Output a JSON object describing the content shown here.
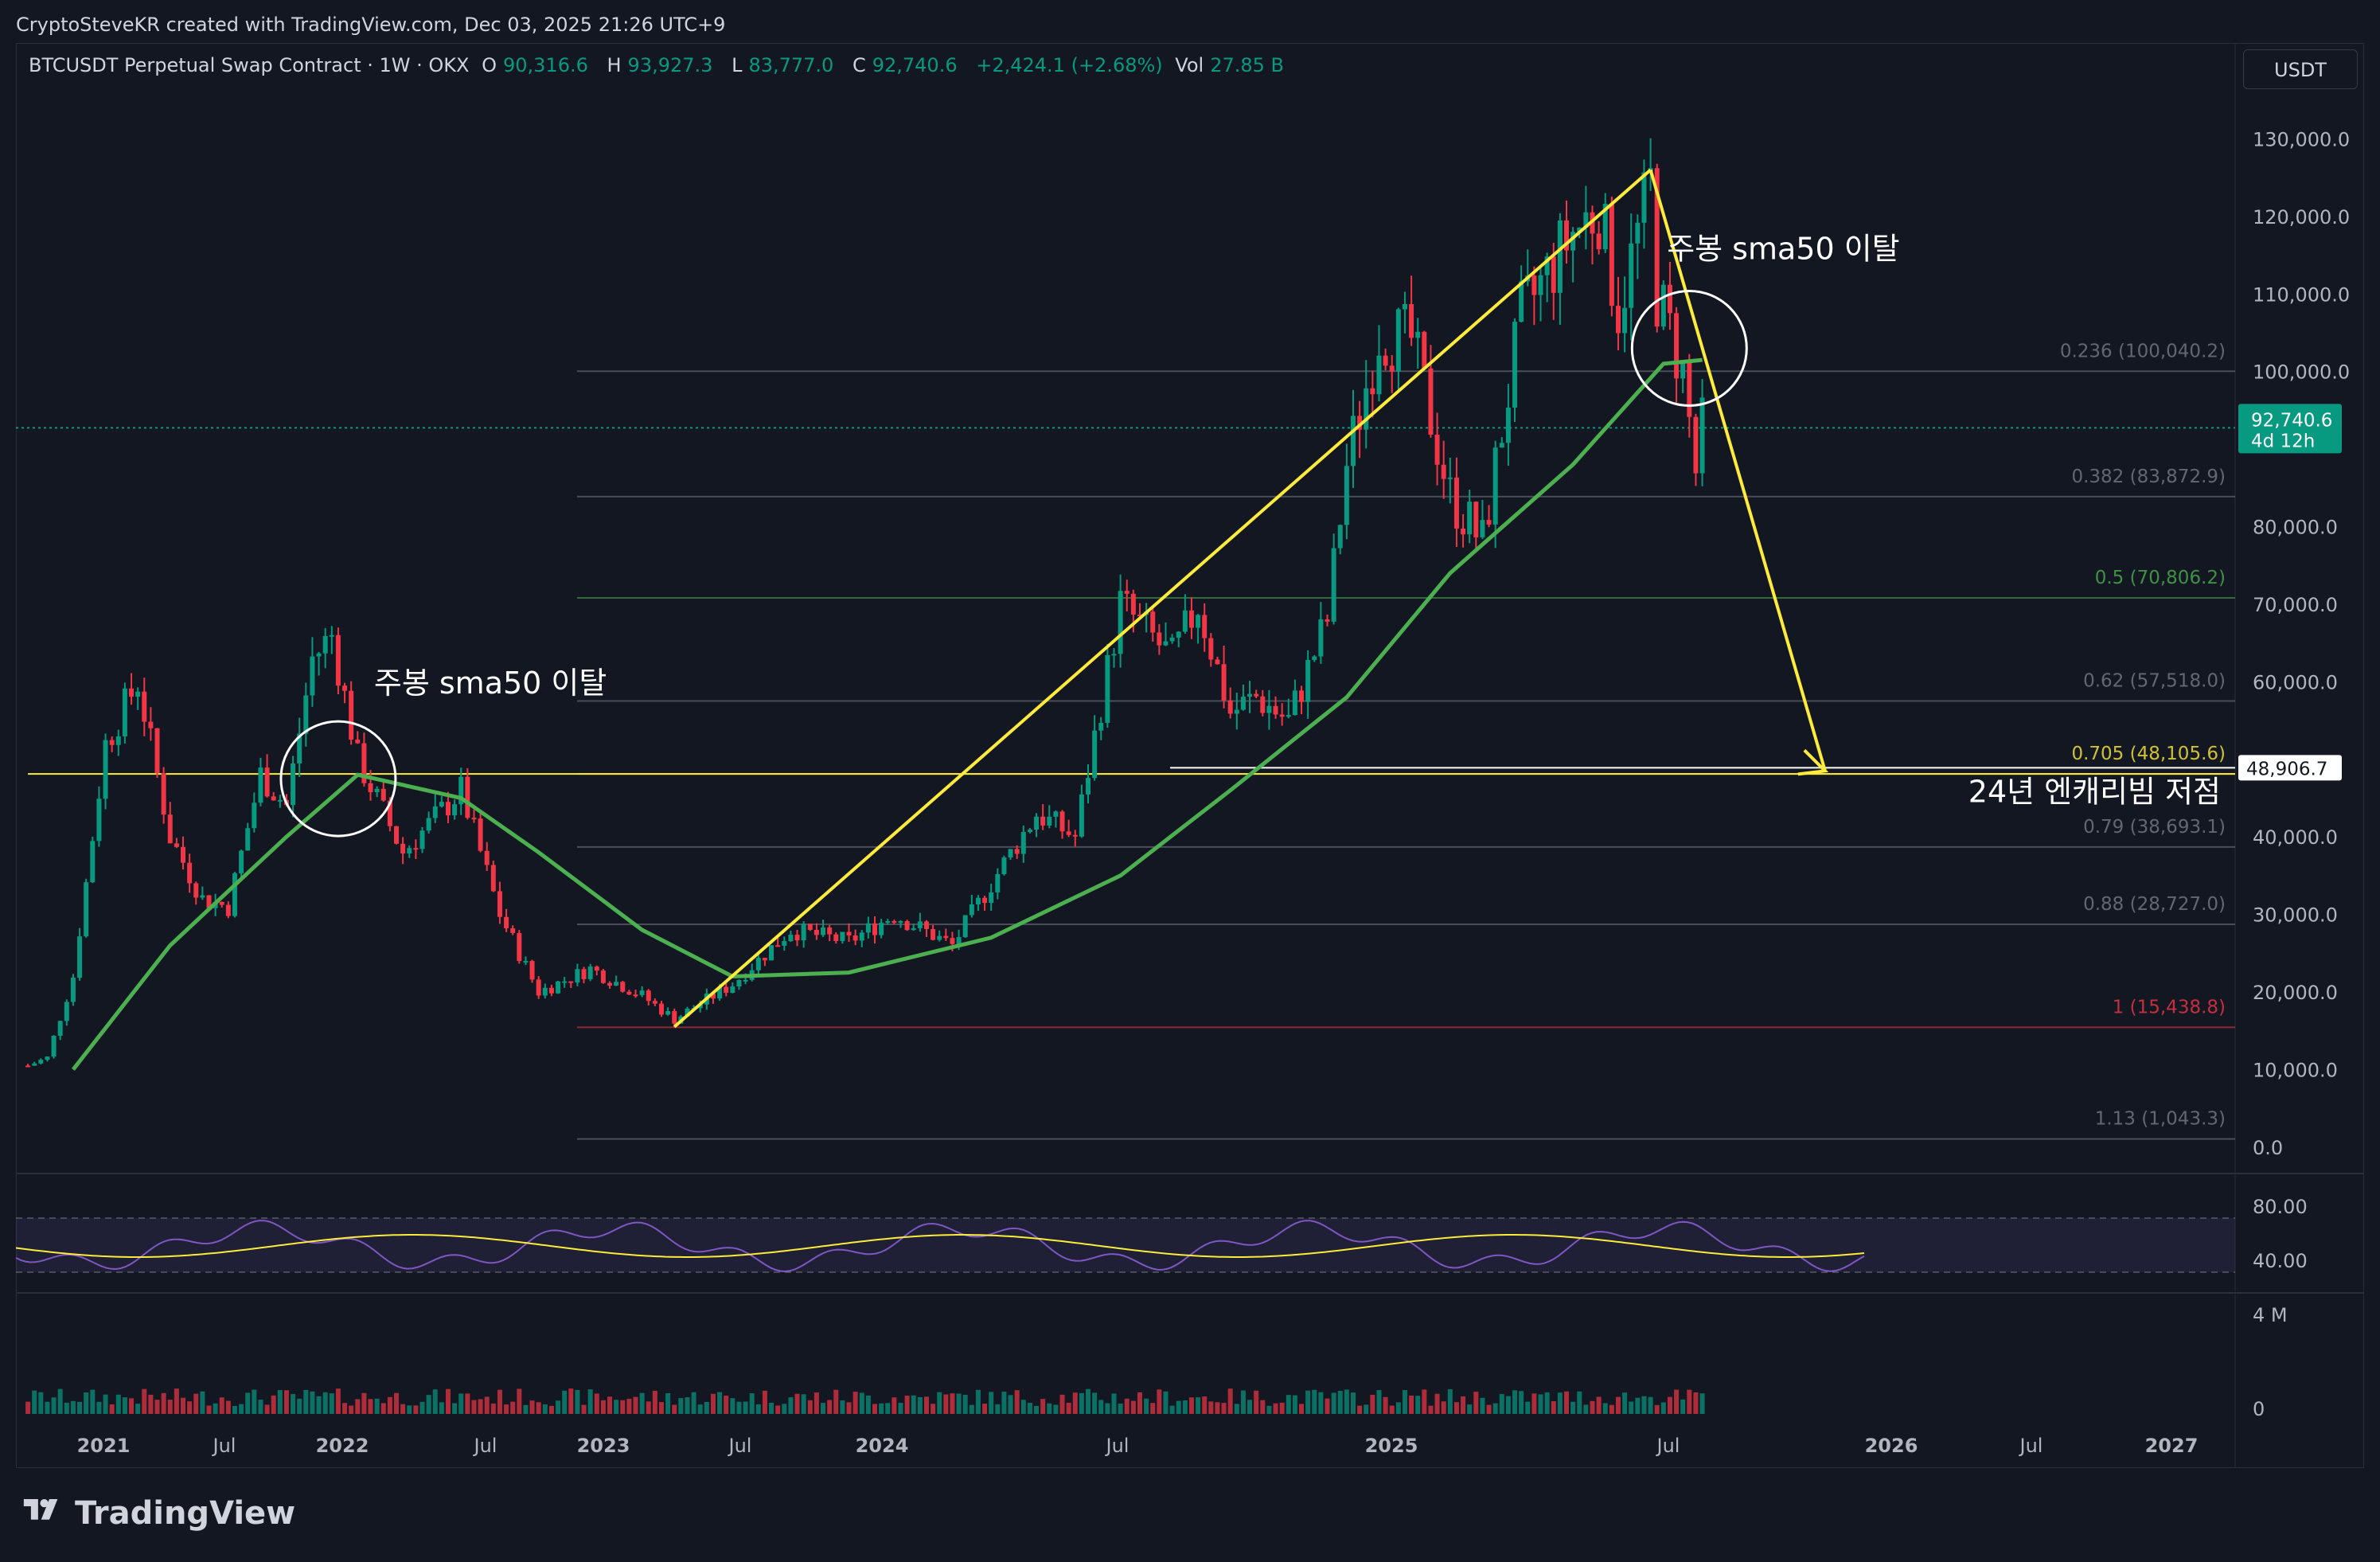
{
  "header": {
    "attribution": "CryptoSteveKR created with TradingView.com, Dec 03, 2025 21:26 UTC+9"
  },
  "symbol": {
    "name": "BTCUSDT Perpetual Swap Contract · 1W · OKX",
    "o_label": "O",
    "o_value": "90,316.6",
    "h_label": "H",
    "h_value": "93,927.3",
    "l_label": "L",
    "l_value": "83,777.0",
    "c_label": "C",
    "c_value": "92,740.6",
    "change": "+2,424.1 (+2.68%)",
    "vol_label": "Vol",
    "vol_value": "27.85 B"
  },
  "currency_button": "USDT",
  "footer": {
    "brand": "TradingView"
  },
  "colors": {
    "up": "#089981",
    "down": "#f23645",
    "sma": "#4caf50",
    "trend": "#ffeb3b",
    "background": "#131722"
  },
  "chart_data": {
    "type": "candlestick",
    "interval": "1W",
    "y_scale": "linear",
    "ylim": [
      -3000,
      136000
    ],
    "price_axis": [
      "130,000.0",
      "120,000.0",
      "110,000.0",
      "100,000.0",
      "80,000.0",
      "70,000.0",
      "60,000.0",
      "40,000.0",
      "30,000.0",
      "20,000.0",
      "10,000.0",
      "0.0"
    ],
    "time_axis": [
      "2021",
      "Jul",
      "2022",
      "Jul",
      "2023",
      "Jul",
      "2024",
      "Jul",
      "2025",
      "Jul",
      "2026",
      "Jul",
      "2027"
    ],
    "time_axis_bold": [
      true,
      false,
      true,
      false,
      true,
      false,
      true,
      false,
      true,
      false,
      true,
      false,
      true
    ],
    "last_price": {
      "value": "92,740.6",
      "countdown": "4d 12h"
    },
    "marker_price": "48,906.7",
    "price_path": [
      [
        "2020-12-14",
        10500
      ],
      [
        "2021-01-04",
        11500
      ],
      [
        "2021-02-01",
        22000
      ],
      [
        "2021-03-08",
        52000
      ],
      [
        "2021-04-12",
        60000
      ],
      [
        "2021-05-17",
        40000
      ],
      [
        "2021-06-21",
        32000
      ],
      [
        "2021-07-19",
        31000
      ],
      [
        "2021-08-23",
        48000
      ],
      [
        "2021-09-20",
        44000
      ],
      [
        "2021-10-18",
        63000
      ],
      [
        "2021-11-08",
        66000
      ],
      [
        "2021-12-06",
        50000
      ],
      [
        "2022-01-24",
        38000
      ],
      [
        "2022-03-28",
        46000
      ],
      [
        "2022-05-09",
        30000
      ],
      [
        "2022-06-20",
        20000
      ],
      [
        "2022-08-15",
        23000
      ],
      [
        "2022-10-10",
        19500
      ],
      [
        "2022-11-14",
        16500
      ],
      [
        "2023-01-16",
        21000
      ],
      [
        "2023-03-20",
        28000
      ],
      [
        "2023-05-22",
        26500
      ],
      [
        "2023-07-10",
        30000
      ],
      [
        "2023-09-11",
        26000
      ],
      [
        "2023-10-23",
        34000
      ],
      [
        "2023-12-11",
        43000
      ],
      [
        "2024-01-22",
        40000
      ],
      [
        "2024-03-11",
        70000
      ],
      [
        "2024-05-06",
        63000
      ],
      [
        "2024-06-03",
        70000
      ],
      [
        "2024-07-08",
        56000
      ],
      [
        "2024-08-05",
        58000
      ],
      [
        "2024-09-09",
        55000
      ],
      [
        "2024-10-21",
        68000
      ],
      [
        "2024-11-11",
        88000
      ],
      [
        "2024-12-16",
        105000
      ],
      [
        "2025-01-20",
        104000
      ],
      [
        "2025-03-03",
        84000
      ],
      [
        "2025-04-07",
        78000
      ],
      [
        "2025-05-19",
        107000
      ],
      [
        "2025-07-14",
        118000
      ],
      [
        "2025-08-11",
        121000
      ],
      [
        "2025-09-01",
        108000
      ],
      [
        "2025-10-06",
        124000
      ],
      [
        "2025-10-13",
        110000
      ],
      [
        "2025-11-10",
        100000
      ],
      [
        "2025-11-24",
        87000
      ],
      [
        "2025-12-01",
        92740
      ]
    ],
    "sma50": [
      [
        "2021-02-01",
        10000
      ],
      [
        "2021-05-17",
        26000
      ],
      [
        "2021-09-20",
        40000
      ],
      [
        "2021-12-06",
        48000
      ],
      [
        "2022-03-28",
        45000
      ],
      [
        "2022-06-20",
        38000
      ],
      [
        "2022-10-10",
        28000
      ],
      [
        "2023-01-16",
        22000
      ],
      [
        "2023-05-22",
        22500
      ],
      [
        "2023-10-23",
        27000
      ],
      [
        "2024-03-11",
        35000
      ],
      [
        "2024-07-08",
        46000
      ],
      [
        "2024-11-11",
        58000
      ],
      [
        "2025-03-03",
        74000
      ],
      [
        "2025-07-14",
        88000
      ],
      [
        "2025-10-20",
        101000
      ],
      [
        "2025-12-01",
        101500
      ]
    ],
    "fibonacci": [
      {
        "label": "0.236 (100,040.2)",
        "value": 100040.2,
        "color": "#787b86"
      },
      {
        "label": "0.382 (83,872.9)",
        "value": 83872.9,
        "color": "#787b86"
      },
      {
        "label": "0.5 (70,806.2)",
        "value": 70806.2,
        "color": "#4caf50"
      },
      {
        "label": "0.62 (57,518.0)",
        "value": 57518.0,
        "color": "#787b86"
      },
      {
        "label": "0.705 (48,105.6)",
        "value": 48105.6,
        "color": "#ffeb3b"
      },
      {
        "label": "0.79 (38,693.1)",
        "value": 38693.1,
        "color": "#787b86"
      },
      {
        "label": "0.88 (28,727.0)",
        "value": 28727.0,
        "color": "#787b86"
      },
      {
        "label": "1 (15,438.8)",
        "value": 15438.8,
        "color": "#f23645"
      },
      {
        "label": "1.13 (1,043.3)",
        "value": 1043.3,
        "color": "#787b86"
      }
    ],
    "trendlines": [
      {
        "from": [
          "2022-11-14",
          15500
        ],
        "to": [
          "2025-10-06",
          126000
        ]
      },
      {
        "from": [
          "2025-10-06",
          126000
        ],
        "to": [
          "2026-04-13",
          48500
        ]
      }
    ],
    "horizontal_lines": [
      {
        "from_date": "2020-12-14",
        "to_date": "2027-06-01",
        "value": 48106,
        "color": "#ffeb3b"
      }
    ],
    "annotations": [
      {
        "text": "주봉 sma50 이탈",
        "date": "2022-01-10",
        "value": 58500
      },
      {
        "text": "주봉 sma50 이탈",
        "date": "2025-11-10",
        "value": 114500
      },
      {
        "text": "24년 엔캐리빔 저점",
        "date": "2026-01-15",
        "value": 44500
      }
    ],
    "circles": [
      {
        "date": "2021-11-15",
        "value": 47500
      },
      {
        "date": "2025-11-17",
        "value": 103000
      }
    ],
    "rsi": {
      "levels": [
        "80.00",
        "40.00"
      ]
    },
    "volume": {
      "axis": [
        "4 M",
        "0"
      ]
    }
  }
}
